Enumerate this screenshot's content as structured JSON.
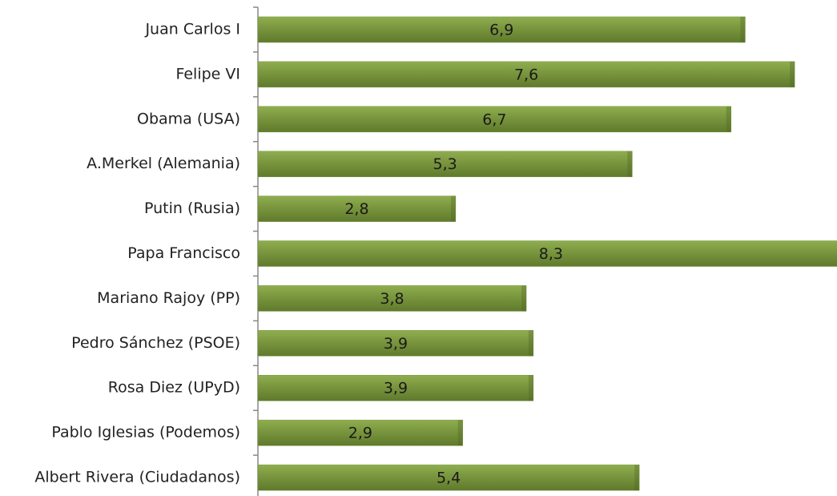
{
  "chart_data": {
    "type": "barh",
    "categories": [
      "Juan Carlos I",
      "Felipe VI",
      "Obama (USA)",
      "A.Merkel (Alemania)",
      "Putin (Rusia)",
      "Papa Francisco",
      "Mariano Rajoy (PP)",
      "Pedro Sánchez (PSOE)",
      "Rosa Diez (UPyD)",
      "Pablo Iglesias (Podemos)",
      "Albert Rivera (Ciudadanos)"
    ],
    "values": [
      6.9,
      7.6,
      6.7,
      5.3,
      2.8,
      8.3,
      3.8,
      3.9,
      3.9,
      2.9,
      5.4
    ],
    "value_labels": [
      "6,9",
      "7,6",
      "6,7",
      "5,3",
      "2,8",
      "8,3",
      "3,8",
      "3,9",
      "3,9",
      "2,9",
      "5,4"
    ],
    "color": "#77933c",
    "xlim": [
      0,
      8.2
    ]
  }
}
